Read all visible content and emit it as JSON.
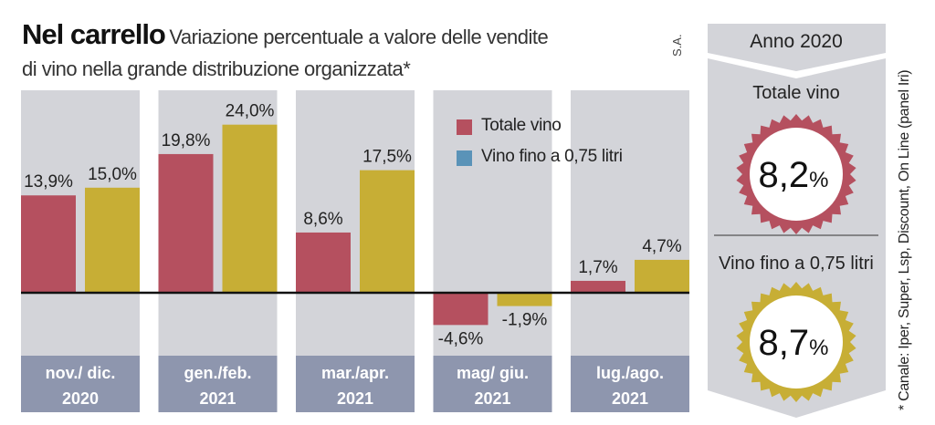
{
  "title": {
    "main": "Nel carrello",
    "subtitle_line1": "Variazione percentuale a valore delle vendite",
    "subtitle_line2": "di vino nella grande distribuzione organizzata*"
  },
  "credit": "S.A.",
  "footnote": "* Canale: Iper, Super, Lsp, Discount, On Line (panel Iri)",
  "colors": {
    "totale_vino": "#b5505f",
    "vino_fino": "#c7ae35",
    "legend_vino_fino_swatch": "#5a93b8",
    "column_bg": "#d3d4d9",
    "label_bg": "#8e96ae",
    "panel_bg": "#d3d4d9"
  },
  "chart_data": {
    "type": "bar",
    "categories": [
      [
        "nov./ dic.",
        "2020"
      ],
      [
        "gen./feb.",
        "2021"
      ],
      [
        "mar./apr.",
        "2021"
      ],
      [
        "mag/ giu.",
        "2021"
      ],
      [
        "lug./ago.",
        "2021"
      ]
    ],
    "series": [
      {
        "name": "Totale vino",
        "values": [
          13.9,
          19.8,
          8.6,
          -4.6,
          1.7
        ],
        "labels": [
          "13,9%",
          "19,8%",
          "8,6%",
          "-4,6%",
          "1,7%"
        ]
      },
      {
        "name": "Vino fino a 0,75 litri",
        "values": [
          15.0,
          24.0,
          17.5,
          -1.9,
          4.7
        ],
        "labels": [
          "15,0%",
          "24,0%",
          "17,5%",
          "-1,9%",
          "4,7%"
        ]
      }
    ],
    "ylim": [
      -8,
      30
    ],
    "legend": "top-right"
  },
  "summary": {
    "heading": "Anno 2020",
    "items": [
      {
        "label": "Totale vino",
        "value": "8,2",
        "unit": "%",
        "value_num": 8.2
      },
      {
        "label": "Vino fino a 0,75 litri",
        "value": "8,7",
        "unit": "%",
        "value_num": 8.7
      }
    ]
  }
}
